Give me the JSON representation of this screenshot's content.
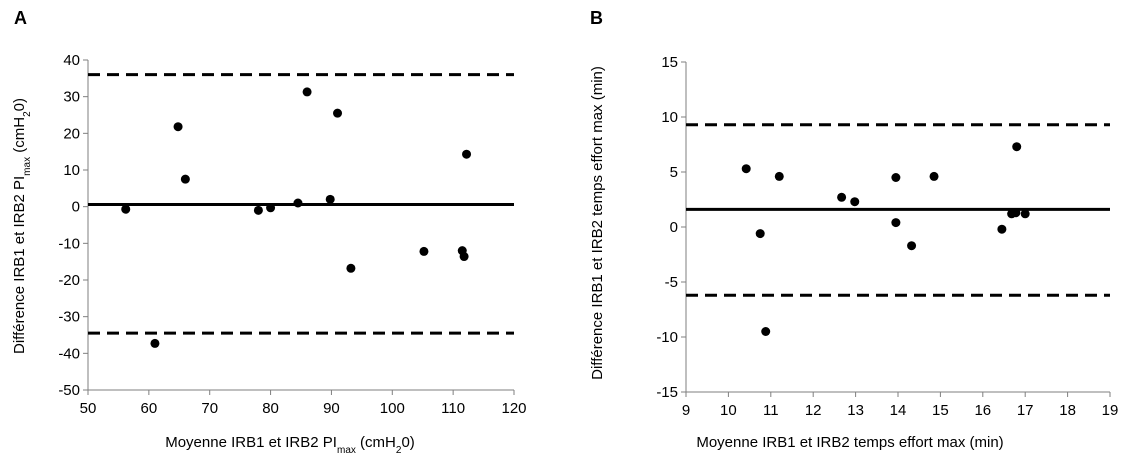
{
  "chart_data": [
    {
      "type": "scatter",
      "panel_label": "A",
      "xlabel": "Moyenne IRB1 et IRB2",
      "xlabel_suffix": "PI",
      "xlabel_sub": "max",
      "xlabel_unit_pre": " (cmH",
      "xlabel_unit_sub": "2",
      "xlabel_unit_post": "0)",
      "ylabel": "Différence IRB1 et IRB2",
      "ylabel_suffix": "PI",
      "ylabel_sub": "max",
      "ylabel_unit_pre": " (cmH",
      "ylabel_unit_sub": "2",
      "ylabel_unit_post": "0)",
      "xlim": [
        50,
        120
      ],
      "ylim": [
        -50,
        40
      ],
      "xticks": [
        "50",
        "60",
        "70",
        "80",
        "90",
        "100",
        "110",
        "120"
      ],
      "yticks": [
        "40",
        "30",
        "20",
        "10",
        "0",
        "-10",
        "-20",
        "-30",
        "-40",
        "-50"
      ],
      "grid": false,
      "mean_line": 0.6,
      "upper_limit": 36,
      "lower_limit": -34.5,
      "points": [
        {
          "x": 56.2,
          "y": -0.7
        },
        {
          "x": 61.0,
          "y": -37.3
        },
        {
          "x": 64.8,
          "y": 21.8
        },
        {
          "x": 66.0,
          "y": 7.5
        },
        {
          "x": 78.0,
          "y": -1.0
        },
        {
          "x": 80.0,
          "y": -0.3
        },
        {
          "x": 84.5,
          "y": 1.0
        },
        {
          "x": 86.0,
          "y": 31.3
        },
        {
          "x": 89.8,
          "y": 2.0
        },
        {
          "x": 91.0,
          "y": 25.5
        },
        {
          "x": 93.2,
          "y": -16.8
        },
        {
          "x": 105.2,
          "y": -12.2
        },
        {
          "x": 111.5,
          "y": -12.0
        },
        {
          "x": 111.8,
          "y": -13.6
        },
        {
          "x": 112.2,
          "y": 14.3
        }
      ]
    },
    {
      "type": "scatter",
      "panel_label": "B",
      "xlabel": "Moyenne IRB1 et IRB2 temps effort max (min)",
      "ylabel": "Différence IRB1 et IRB2 temps effort max (min)",
      "xlim": [
        9,
        19
      ],
      "ylim": [
        -15,
        15
      ],
      "xticks": [
        "9",
        "10",
        "11",
        "12",
        "13",
        "14",
        "15",
        "16",
        "17",
        "18",
        "19"
      ],
      "yticks": [
        "15",
        "10",
        "5",
        "0",
        "-5",
        "-10",
        "-15"
      ],
      "grid": false,
      "mean_line": 1.6,
      "upper_limit": 9.3,
      "lower_limit": -6.2,
      "points": [
        {
          "x": 10.42,
          "y": 5.3
        },
        {
          "x": 10.75,
          "y": -0.6
        },
        {
          "x": 10.88,
          "y": -9.5
        },
        {
          "x": 11.2,
          "y": 4.6
        },
        {
          "x": 12.67,
          "y": 2.7
        },
        {
          "x": 12.98,
          "y": 2.3
        },
        {
          "x": 13.95,
          "y": 4.5
        },
        {
          "x": 13.95,
          "y": 0.4
        },
        {
          "x": 14.32,
          "y": -1.7
        },
        {
          "x": 14.85,
          "y": 4.6
        },
        {
          "x": 16.45,
          "y": -0.2
        },
        {
          "x": 16.68,
          "y": 1.2
        },
        {
          "x": 16.78,
          "y": 1.3
        },
        {
          "x": 16.8,
          "y": 7.3
        },
        {
          "x": 17.0,
          "y": 1.2
        }
      ]
    }
  ]
}
